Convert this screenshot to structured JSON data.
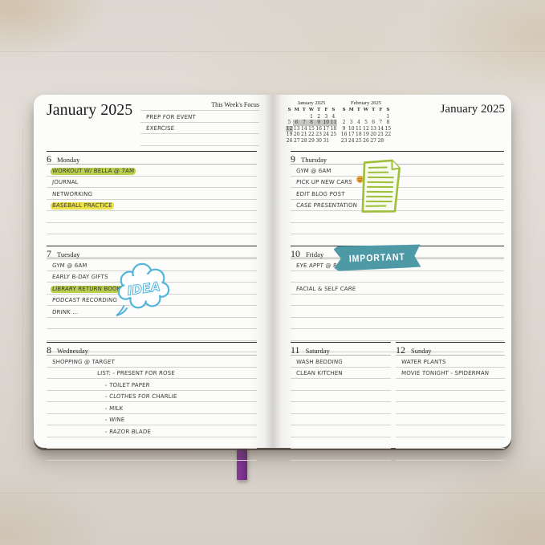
{
  "left_page": {
    "header": "January 2025",
    "focus": {
      "label": "This Week's Focus",
      "lines": [
        "Prep For Event",
        "Exercise",
        ""
      ]
    }
  },
  "right_page": {
    "header": "January 2025"
  },
  "mini_calendars": [
    {
      "title": "January 2025",
      "dow": [
        "S",
        "M",
        "T",
        "W",
        "T",
        "F",
        "S"
      ],
      "weeks": [
        [
          "",
          "",
          "",
          "1",
          "2",
          "3",
          "4"
        ],
        [
          "5",
          "6",
          "7",
          "8",
          "9",
          "10",
          "11"
        ],
        [
          "12",
          "13",
          "14",
          "15",
          "16",
          "17",
          "18"
        ],
        [
          "19",
          "20",
          "21",
          "22",
          "23",
          "24",
          "25"
        ],
        [
          "26",
          "27",
          "28",
          "29",
          "30",
          "31",
          ""
        ]
      ],
      "highlighted": [
        "6",
        "7",
        "8",
        "9",
        "10",
        "11",
        "12"
      ]
    },
    {
      "title": "February 2025",
      "dow": [
        "S",
        "M",
        "T",
        "W",
        "T",
        "F",
        "S"
      ],
      "weeks": [
        [
          "",
          "",
          "",
          "",
          "",
          "",
          "1"
        ],
        [
          "2",
          "3",
          "4",
          "5",
          "6",
          "7",
          "8"
        ],
        [
          "9",
          "10",
          "11",
          "12",
          "13",
          "14",
          "15"
        ],
        [
          "16",
          "17",
          "18",
          "19",
          "20",
          "21",
          "22"
        ],
        [
          "23",
          "24",
          "25",
          "26",
          "27",
          "28",
          ""
        ]
      ],
      "highlighted": []
    }
  ],
  "days": [
    {
      "num": "6",
      "name": "Monday",
      "entries": [
        {
          "text": "Workout w/ Bella @ 7am",
          "highlight": "green"
        },
        {
          "text": "Journal"
        },
        {
          "text": "Networking"
        },
        {
          "text": "Baseball Practice",
          "highlight": "yellow"
        }
      ]
    },
    {
      "num": "7",
      "name": "Tuesday",
      "entries": [
        {
          "text": "Gym @ 6am"
        },
        {
          "text": "Early B-Day Gifts"
        },
        {
          "text": "Library Return Books",
          "highlight": "green"
        },
        {
          "text": "Podcast Recording"
        },
        {
          "text": "Drink ..."
        }
      ]
    },
    {
      "num": "8",
      "name": "Wednesday",
      "entries": [
        {
          "text": "Shopping @ Target"
        },
        {
          "text": "List: - present for Rose",
          "indent": 1
        },
        {
          "text": "- toilet paper",
          "indent": 2
        },
        {
          "text": "- clothes for Charlie",
          "indent": 2
        },
        {
          "text": "- milk",
          "indent": 2
        },
        {
          "text": "- wine",
          "indent": 2
        },
        {
          "text": "- razor blade",
          "indent": 2
        }
      ]
    },
    {
      "num": "9",
      "name": "Thursday",
      "entries": [
        {
          "text": "Gym @ 6am"
        },
        {
          "text": "Pick Up New Cars",
          "emoji": "smiley"
        },
        {
          "text": "Edit Blog Post"
        },
        {
          "text": "Case Presentation"
        }
      ]
    },
    {
      "num": "10",
      "name": "Friday",
      "entries": [
        {
          "text": "Eye Appt @ 8am"
        },
        {
          "text": ""
        },
        {
          "text": "Facial & Self Care"
        }
      ]
    },
    {
      "num": "11",
      "name": "Saturday",
      "entries": [
        {
          "text": "Wash Bedding"
        },
        {
          "text": "Clean Kitchen"
        }
      ]
    },
    {
      "num": "12",
      "name": "Sunday",
      "entries": [
        {
          "text": "Water Plants"
        },
        {
          "text": "Movie Tonight - Spiderman"
        }
      ]
    }
  ],
  "stickers": {
    "idea_label": "IDEA",
    "important_label": "IMPORTANT"
  },
  "colors": {
    "highlight_green": "#b9cf4b",
    "highlight_yellow": "#eae14a",
    "banner_teal": "#4d99a6",
    "cloud_blue": "#4fb3da",
    "note_green": "#9dbf3a",
    "ribbon_purple": "#7d2f91",
    "smiley_orange": "#f5a83c"
  }
}
